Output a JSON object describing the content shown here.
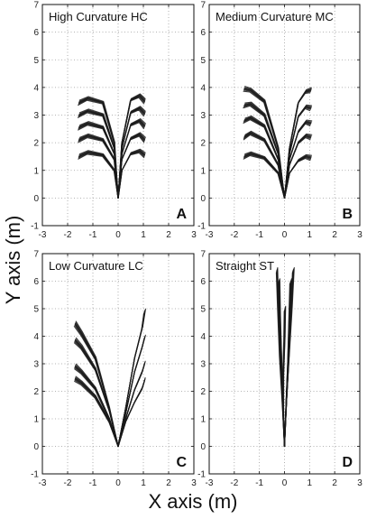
{
  "chart_data": {
    "type": "line",
    "xlabel": "X axis (m)",
    "ylabel": "Y axis (m)",
    "xlim": [
      -3,
      3
    ],
    "ylim": [
      -1,
      7
    ],
    "xticks": [
      "-3",
      "-2",
      "-1",
      "0",
      "1",
      "2",
      "3"
    ],
    "yticks": [
      "-1",
      "0",
      "1",
      "2",
      "3",
      "4",
      "5",
      "6",
      "7"
    ],
    "grid": true,
    "line_color": "#1a1a1a",
    "panels": [
      {
        "title": "High Curvature HC",
        "letter": "A",
        "series": [
          {
            "x": [
              0,
              -0.15,
              -0.6,
              -1.2,
              -1.55
            ],
            "y": [
              0,
              1.0,
              1.55,
              1.65,
              1.5
            ]
          },
          {
            "x": [
              0,
              -0.15,
              -0.6,
              -1.2,
              -1.55
            ],
            "y": [
              0,
              1.4,
              2.1,
              2.25,
              2.1
            ]
          },
          {
            "x": [
              0,
              -0.15,
              -0.6,
              -1.2,
              -1.55
            ],
            "y": [
              0,
              1.6,
              2.55,
              2.7,
              2.55
            ]
          },
          {
            "x": [
              0,
              -0.15,
              -0.6,
              -1.2,
              -1.55
            ],
            "y": [
              0,
              1.8,
              3.0,
              3.15,
              3.0
            ]
          },
          {
            "x": [
              0,
              -0.15,
              -0.6,
              -1.2,
              -1.55
            ],
            "y": [
              0,
              2.0,
              3.45,
              3.6,
              3.45
            ]
          },
          {
            "x": [
              0,
              0.15,
              0.5,
              0.85,
              1.05
            ],
            "y": [
              0,
              1.0,
              1.6,
              1.7,
              1.55
            ]
          },
          {
            "x": [
              0,
              0.15,
              0.5,
              0.85,
              1.05
            ],
            "y": [
              0,
              1.4,
              2.15,
              2.3,
              2.1
            ]
          },
          {
            "x": [
              0,
              0.15,
              0.5,
              0.85,
              1.05
            ],
            "y": [
              0,
              1.6,
              2.65,
              2.8,
              2.6
            ]
          },
          {
            "x": [
              0,
              0.15,
              0.5,
              0.85,
              1.05
            ],
            "y": [
              0,
              1.8,
              3.1,
              3.25,
              3.05
            ]
          },
          {
            "x": [
              0,
              0.15,
              0.5,
              0.85,
              1.05
            ],
            "y": [
              0,
              2.0,
              3.55,
              3.7,
              3.5
            ]
          }
        ]
      },
      {
        "title": "Medium Curvature MC",
        "letter": "B",
        "series": [
          {
            "x": [
              0,
              -0.25,
              -0.8,
              -1.35,
              -1.6
            ],
            "y": [
              0,
              0.9,
              1.45,
              1.6,
              1.5
            ]
          },
          {
            "x": [
              0,
              -0.25,
              -0.8,
              -1.35,
              -1.6
            ],
            "y": [
              0,
              1.2,
              2.1,
              2.35,
              2.2
            ]
          },
          {
            "x": [
              0,
              -0.25,
              -0.8,
              -1.35,
              -1.6
            ],
            "y": [
              0,
              1.4,
              2.6,
              2.9,
              2.8
            ]
          },
          {
            "x": [
              0,
              -0.25,
              -0.8,
              -1.35,
              -1.6
            ],
            "y": [
              0,
              1.6,
              3.0,
              3.4,
              3.35
            ]
          },
          {
            "x": [
              0,
              -0.25,
              -0.8,
              -1.35,
              -1.6
            ],
            "y": [
              0,
              1.8,
              3.5,
              3.9,
              3.95
            ]
          },
          {
            "x": [
              0,
              0.2,
              0.55,
              0.85,
              1.05
            ],
            "y": [
              0,
              0.9,
              1.35,
              1.5,
              1.45
            ]
          },
          {
            "x": [
              0,
              0.2,
              0.55,
              0.85,
              1.05
            ],
            "y": [
              0,
              1.2,
              2.0,
              2.25,
              2.2
            ]
          },
          {
            "x": [
              0,
              0.2,
              0.55,
              0.85,
              1.05
            ],
            "y": [
              0,
              1.4,
              2.4,
              2.75,
              2.7
            ]
          },
          {
            "x": [
              0,
              0.2,
              0.55,
              0.85,
              1.05
            ],
            "y": [
              0,
              1.6,
              2.95,
              3.3,
              3.25
            ]
          },
          {
            "x": [
              0,
              0.2,
              0.55,
              0.85,
              1.05
            ],
            "y": [
              0,
              1.8,
              3.45,
              3.85,
              3.9
            ]
          }
        ]
      },
      {
        "title": "Low Curvature LC",
        "letter": "C",
        "series": [
          {
            "x": [
              0,
              -0.35,
              -0.9,
              -1.45,
              -1.7
            ],
            "y": [
              0,
              0.9,
              1.8,
              2.3,
              2.45
            ]
          },
          {
            "x": [
              0,
              -0.35,
              -0.9,
              -1.45,
              -1.7
            ],
            "y": [
              0,
              1.0,
              2.1,
              2.7,
              2.9
            ]
          },
          {
            "x": [
              0,
              -0.35,
              -0.9,
              -1.45,
              -1.7
            ],
            "y": [
              0,
              1.3,
              2.8,
              3.6,
              3.85
            ]
          },
          {
            "x": [
              0,
              -0.35,
              -0.9,
              -1.45,
              -1.7
            ],
            "y": [
              0,
              1.4,
              3.2,
              4.1,
              4.45
            ]
          },
          {
            "x": [
              0,
              0.3,
              0.65,
              0.95,
              1.05
            ],
            "y": [
              0,
              0.9,
              1.6,
              2.1,
              2.4
            ]
          },
          {
            "x": [
              0,
              0.3,
              0.65,
              0.95,
              1.05
            ],
            "y": [
              0,
              1.0,
              2.05,
              2.7,
              3.0
            ]
          },
          {
            "x": [
              0,
              0.3,
              0.65,
              0.95,
              1.05
            ],
            "y": [
              0,
              1.2,
              2.7,
              3.6,
              3.95
            ]
          },
          {
            "x": [
              0,
              0.3,
              0.65,
              0.95,
              1.05
            ],
            "y": [
              0,
              1.4,
              3.2,
              4.3,
              4.9
            ]
          }
        ]
      },
      {
        "title": "Straight ST",
        "letter": "D",
        "series": [
          {
            "x": [
              0,
              -0.08,
              -0.18,
              -0.25,
              -0.3
            ],
            "y": [
              0,
              1.6,
              3.3,
              5.0,
              6.4
            ]
          },
          {
            "x": [
              0,
              -0.06,
              -0.12,
              -0.18,
              -0.22
            ],
            "y": [
              0,
              1.5,
              3.1,
              4.7,
              6.0
            ]
          },
          {
            "x": [
              0,
              0.08,
              0.18,
              0.28,
              0.35
            ],
            "y": [
              0,
              1.6,
              3.3,
              5.0,
              6.4
            ]
          },
          {
            "x": [
              0,
              0.06,
              0.14,
              0.2,
              0.25
            ],
            "y": [
              0,
              1.5,
              3.1,
              4.7,
              6.0
            ]
          },
          {
            "x": [
              0,
              -0.05,
              -0.05,
              0.0,
              0.02
            ],
            "y": [
              0,
              1.3,
              2.6,
              3.9,
              5.0
            ]
          }
        ]
      }
    ]
  }
}
